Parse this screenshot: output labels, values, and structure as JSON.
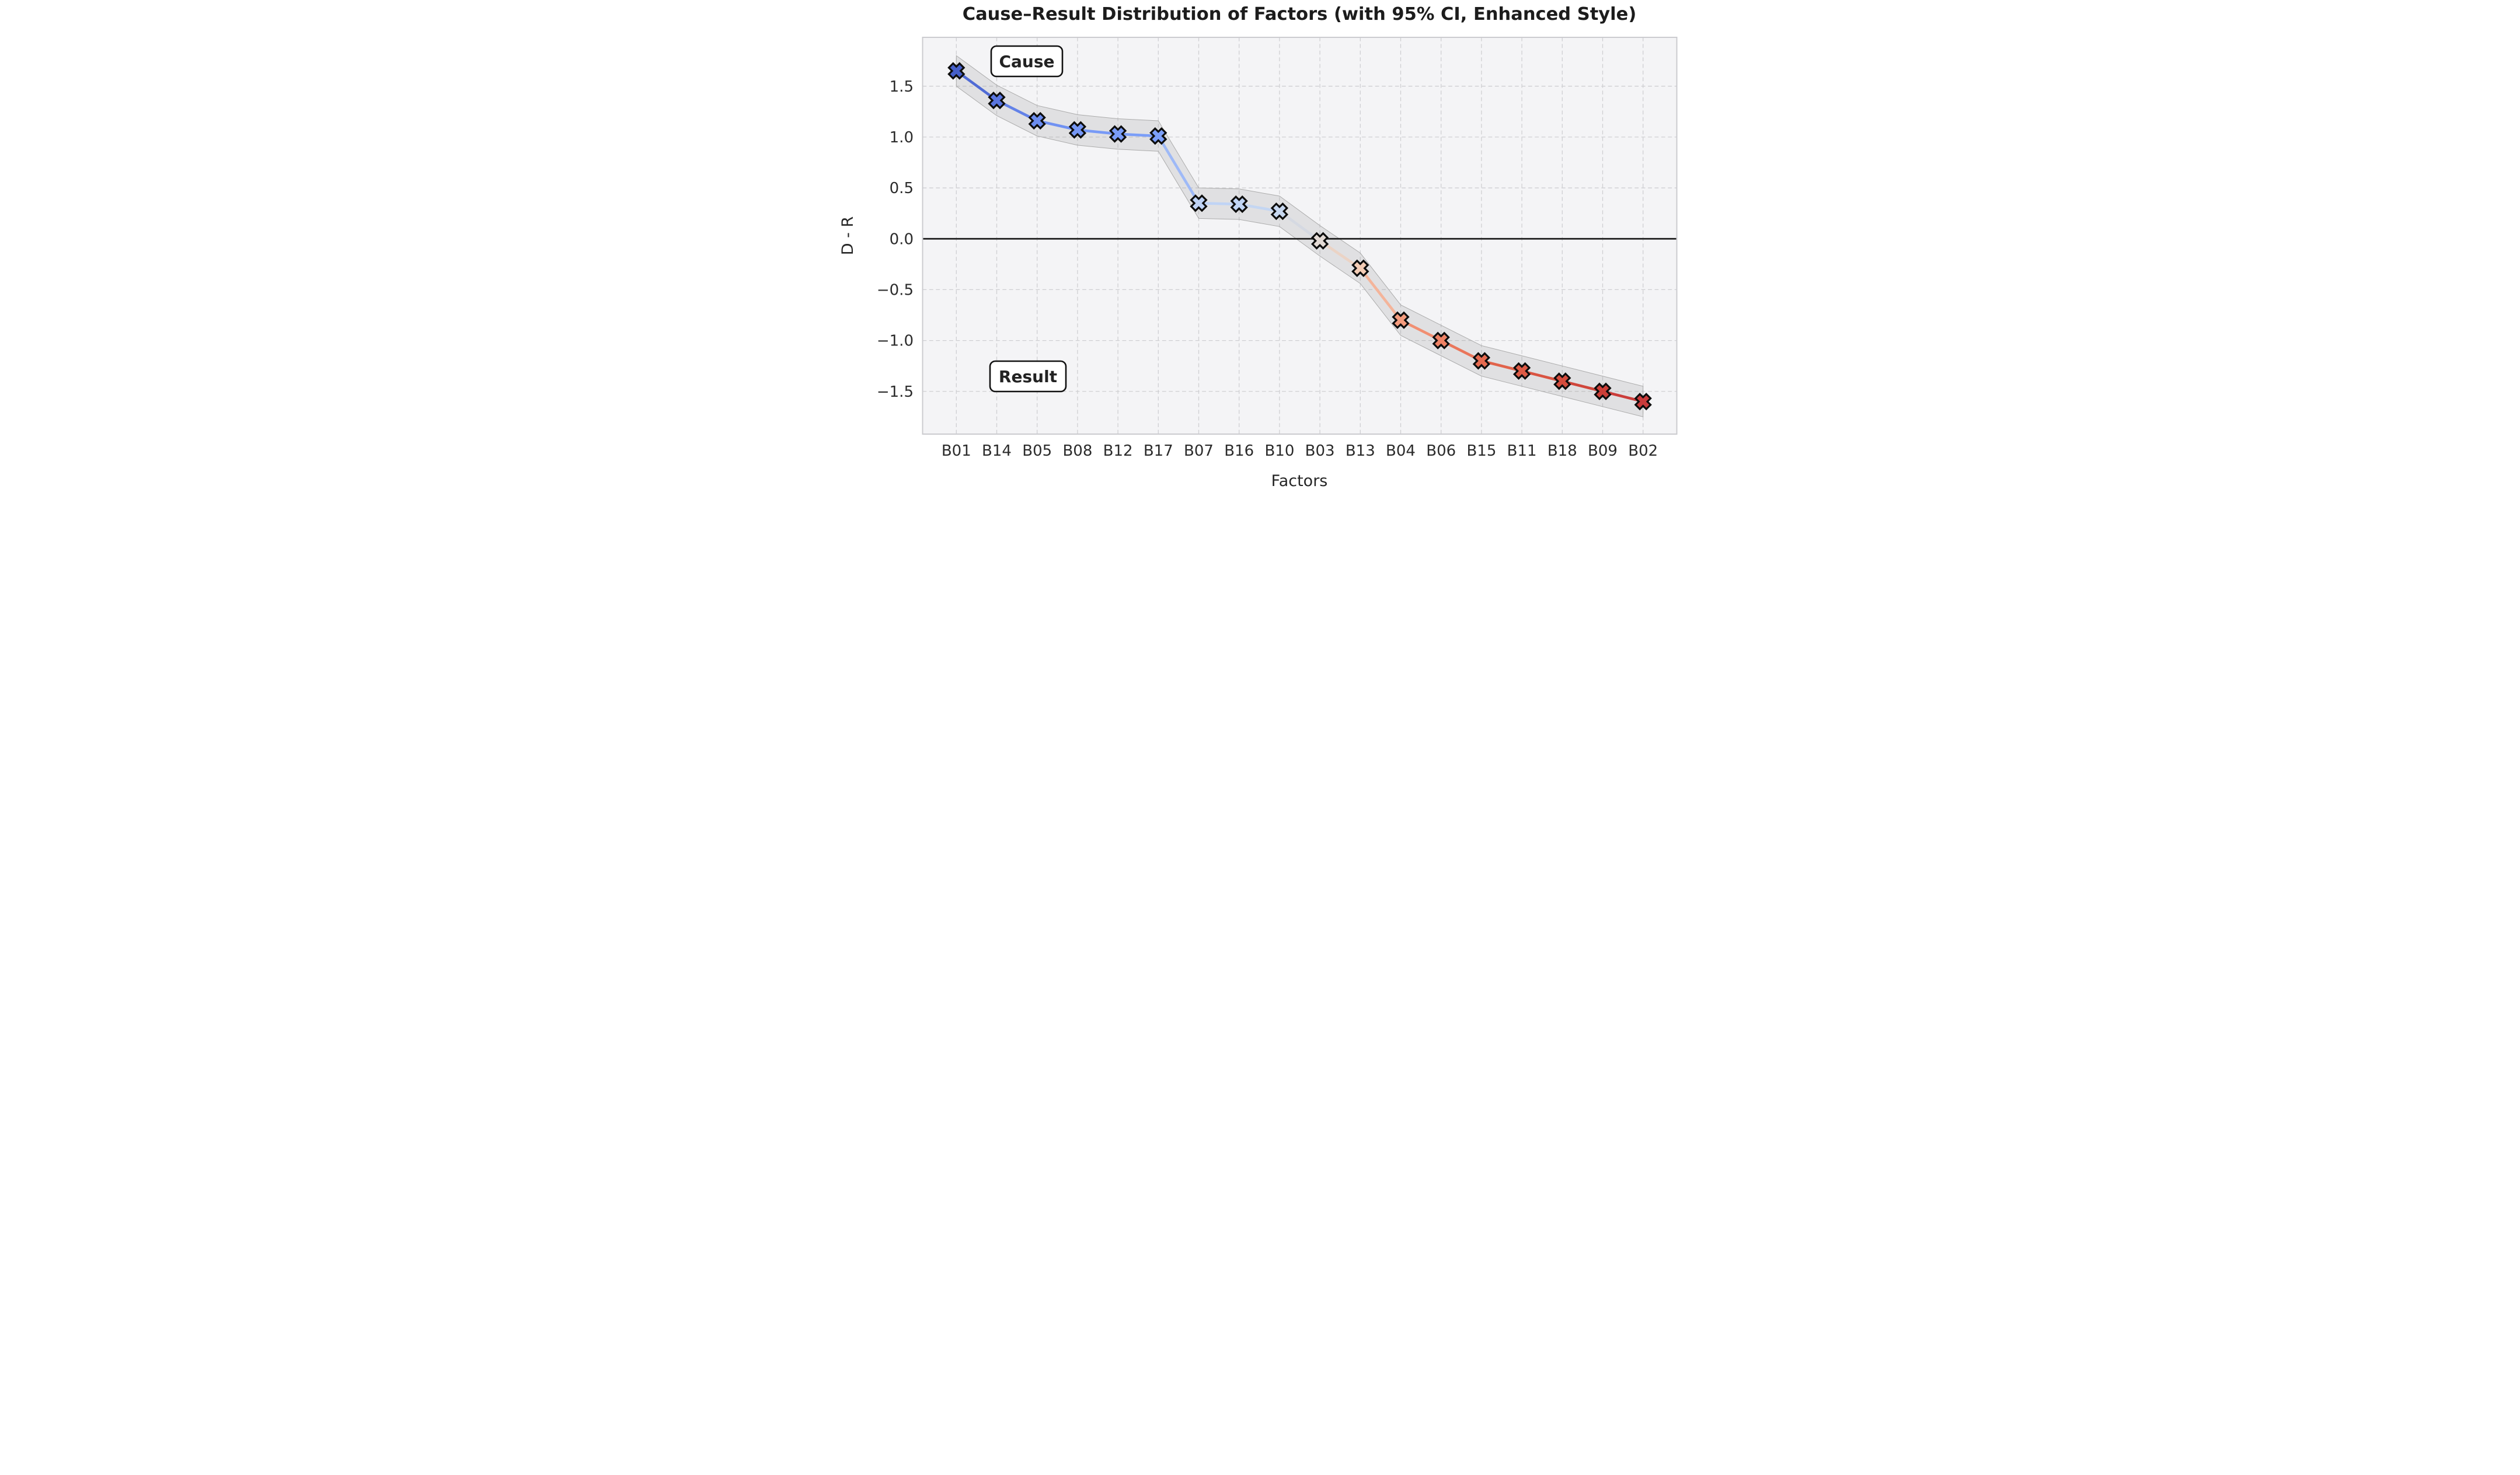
{
  "chart_data": {
    "type": "line",
    "title": "Cause–Result Distribution of Factors (with 95% CI, Enhanced Style)",
    "xlabel": "Factors",
    "ylabel": "D - R",
    "categories": [
      "B01",
      "B14",
      "B05",
      "B08",
      "B12",
      "B17",
      "B07",
      "B16",
      "B10",
      "B03",
      "B13",
      "B04",
      "B06",
      "B15",
      "B11",
      "B18",
      "B09",
      "B02"
    ],
    "values": [
      1.65,
      1.36,
      1.16,
      1.07,
      1.03,
      1.01,
      0.35,
      0.34,
      0.27,
      -0.02,
      -0.29,
      -0.8,
      -1.0,
      -1.2,
      -1.3,
      -1.4,
      -1.5,
      -1.6
    ],
    "ci_halfwidth": 0.15,
    "point_colors": [
      "#455FC9",
      "#5A76E0",
      "#6C8DEF",
      "#7697F4",
      "#7A9CF7",
      "#7C9FF8",
      "#BFD3F5",
      "#C0D4F4",
      "#C7D7EF",
      "#E3DAD5",
      "#F3CCB5",
      "#F49C7E",
      "#EE8265",
      "#E56A50",
      "#DD5B46",
      "#D44C3D",
      "#CC3F38",
      "#C93B3B"
    ],
    "yticks": [
      {
        "value": 1.5,
        "label": "1.5"
      },
      {
        "value": 1.0,
        "label": "1.0"
      },
      {
        "value": 0.5,
        "label": "0.5"
      },
      {
        "value": 0.0,
        "label": "0.0"
      },
      {
        "value": -0.5,
        "label": "−0.5"
      },
      {
        "value": -1.0,
        "label": "−1.0"
      },
      {
        "value": -1.5,
        "label": "−1.5"
      }
    ],
    "ylim": [
      -1.92,
      1.98
    ],
    "grid": "dashed",
    "legend": "none",
    "zero_line": true,
    "annotations": [
      {
        "label": "Cause"
      },
      {
        "label": "Result"
      }
    ],
    "colors": {
      "plot_bg": "#f4f4f6",
      "grid": "#cfcfd2",
      "spine": "#cbcbcf",
      "zero_line": "#1d1d1d",
      "band_fill": "rgba(125,125,125,0.16)",
      "band_edge": "#ababab",
      "marker_edge": "#0d0d0d",
      "text": "#262626"
    }
  }
}
